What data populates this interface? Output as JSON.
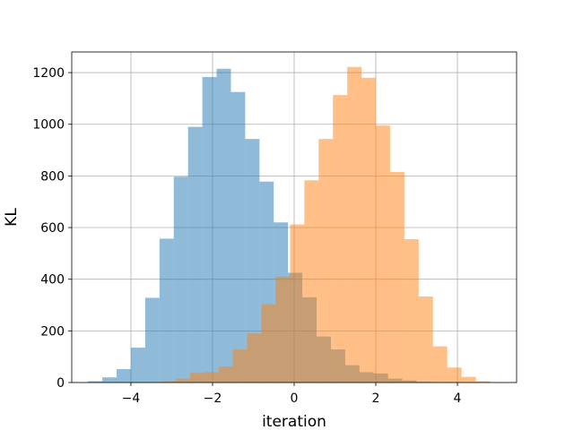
{
  "chart_data": {
    "type": "bar",
    "title": "",
    "xlabel": "iteration",
    "ylabel": "KL",
    "xlim": [
      -5.45,
      5.45
    ],
    "ylim": [
      0,
      1280
    ],
    "xticks": [
      -4,
      -2,
      0,
      2,
      4
    ],
    "xtick_labels": [
      "−4",
      "−2",
      "0",
      "2",
      "4"
    ],
    "yticks": [
      0,
      200,
      400,
      600,
      800,
      1000,
      1200
    ],
    "ytick_labels": [
      "0",
      "200",
      "400",
      "600",
      "800",
      "1000",
      "1200"
    ],
    "grid": true,
    "series": [
      {
        "color": "#1f77b4",
        "opacity": 0.5,
        "bins": [
          {
            "x0": -5.05,
            "x1": -4.7,
            "value": 5
          },
          {
            "x0": -4.7,
            "x1": -4.35,
            "value": 20
          },
          {
            "x0": -4.35,
            "x1": -4.0,
            "value": 52
          },
          {
            "x0": -4.0,
            "x1": -3.65,
            "value": 135
          },
          {
            "x0": -3.65,
            "x1": -3.3,
            "value": 328
          },
          {
            "x0": -3.3,
            "x1": -2.95,
            "value": 557
          },
          {
            "x0": -2.95,
            "x1": -2.6,
            "value": 797
          },
          {
            "x0": -2.6,
            "x1": -2.25,
            "value": 990
          },
          {
            "x0": -2.25,
            "x1": -1.9,
            "value": 1183
          },
          {
            "x0": -1.9,
            "x1": -1.55,
            "value": 1215
          },
          {
            "x0": -1.55,
            "x1": -1.2,
            "value": 1125
          },
          {
            "x0": -1.2,
            "x1": -0.85,
            "value": 943
          },
          {
            "x0": -0.85,
            "x1": -0.5,
            "value": 778
          },
          {
            "x0": -0.5,
            "x1": -0.15,
            "value": 620
          },
          {
            "x0": -0.15,
            "x1": 0.2,
            "value": 425
          },
          {
            "x0": 0.2,
            "x1": 0.55,
            "value": 330
          },
          {
            "x0": 0.55,
            "x1": 0.9,
            "value": 178
          },
          {
            "x0": 0.9,
            "x1": 1.25,
            "value": 128
          },
          {
            "x0": 1.25,
            "x1": 1.6,
            "value": 67
          },
          {
            "x0": 1.6,
            "x1": 1.95,
            "value": 40
          },
          {
            "x0": 1.95,
            "x1": 2.3,
            "value": 35
          },
          {
            "x0": 2.3,
            "x1": 2.65,
            "value": 15
          },
          {
            "x0": 2.65,
            "x1": 3.0,
            "value": 8
          },
          {
            "x0": 3.0,
            "x1": 3.35,
            "value": 3
          }
        ]
      },
      {
        "color": "#ff7f0e",
        "opacity": 0.5,
        "bins": [
          {
            "x0": -3.25,
            "x1": -2.9,
            "value": 5
          },
          {
            "x0": -2.9,
            "x1": -2.55,
            "value": 15
          },
          {
            "x0": -2.55,
            "x1": -2.2,
            "value": 37
          },
          {
            "x0": -2.2,
            "x1": -1.85,
            "value": 40
          },
          {
            "x0": -1.85,
            "x1": -1.5,
            "value": 62
          },
          {
            "x0": -1.5,
            "x1": -1.15,
            "value": 128
          },
          {
            "x0": -1.15,
            "x1": -0.8,
            "value": 190
          },
          {
            "x0": -0.8,
            "x1": -0.45,
            "value": 303
          },
          {
            "x0": -0.45,
            "x1": -0.1,
            "value": 410
          },
          {
            "x0": -0.1,
            "x1": 0.25,
            "value": 612
          },
          {
            "x0": 0.25,
            "x1": 0.6,
            "value": 783
          },
          {
            "x0": 0.6,
            "x1": 0.95,
            "value": 943
          },
          {
            "x0": 0.95,
            "x1": 1.3,
            "value": 1113
          },
          {
            "x0": 1.3,
            "x1": 1.65,
            "value": 1222
          },
          {
            "x0": 1.65,
            "x1": 2.0,
            "value": 1180
          },
          {
            "x0": 2.0,
            "x1": 2.35,
            "value": 995
          },
          {
            "x0": 2.35,
            "x1": 2.7,
            "value": 815
          },
          {
            "x0": 2.7,
            "x1": 3.05,
            "value": 555
          },
          {
            "x0": 3.05,
            "x1": 3.4,
            "value": 333
          },
          {
            "x0": 3.4,
            "x1": 3.75,
            "value": 140
          },
          {
            "x0": 3.75,
            "x1": 4.1,
            "value": 58
          },
          {
            "x0": 4.1,
            "x1": 4.45,
            "value": 22
          },
          {
            "x0": 4.45,
            "x1": 4.8,
            "value": 5
          }
        ]
      }
    ]
  }
}
